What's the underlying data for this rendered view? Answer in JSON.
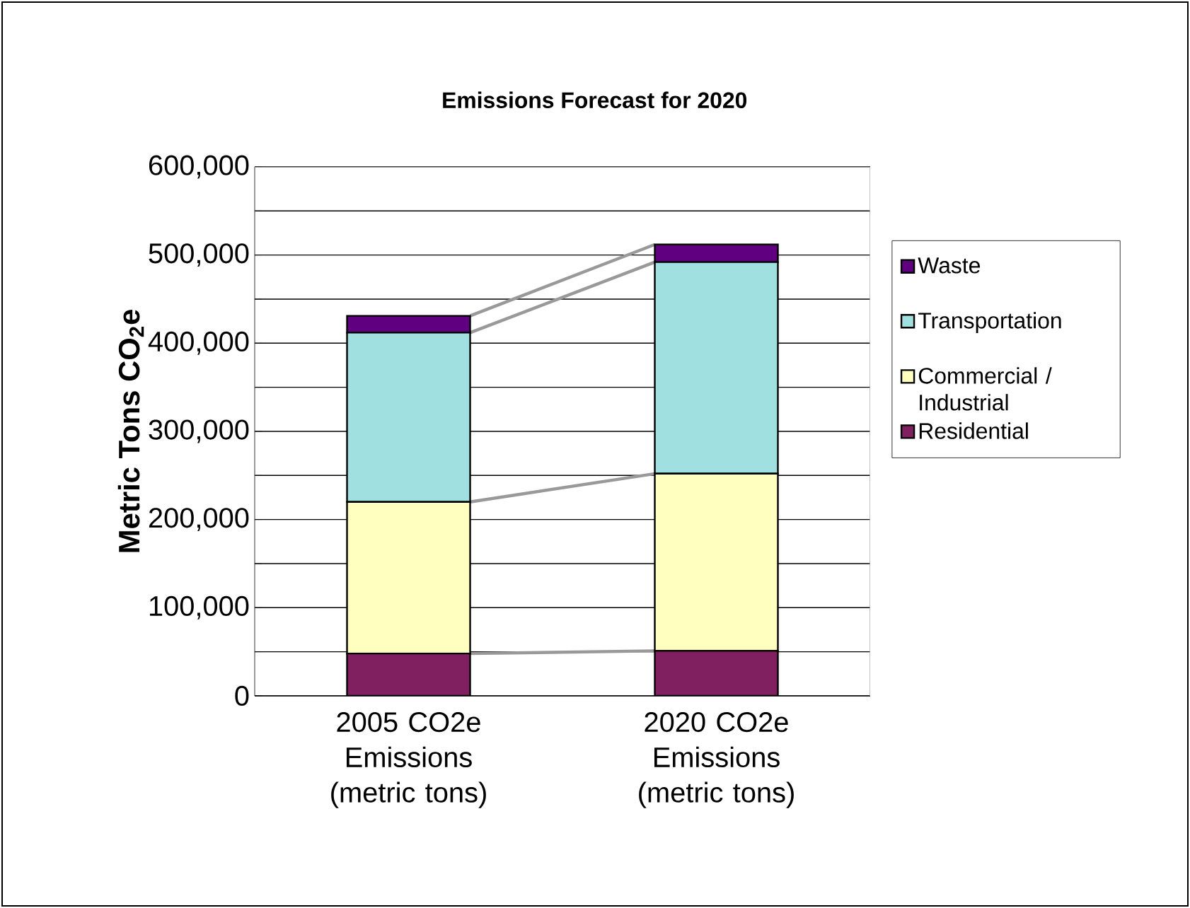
{
  "chart_data": {
    "type": "bar",
    "stacked": true,
    "title": "Emissions Forecast for 2020",
    "ylabel": "Metric Tons CO$_{2}$e",
    "categories": [
      "2005 CO2e Emissions (metric tons)",
      "2020 CO2e Emissions (metric tons)"
    ],
    "series": [
      {
        "name": "Residential",
        "color": "#802060",
        "values": [
          48000,
          51000
        ]
      },
      {
        "name": "Commercial / Industrial",
        "color": "#ffffc0",
        "values": [
          172000,
          201000
        ]
      },
      {
        "name": "Transportation",
        "color": "#a0e0e0",
        "values": [
          192000,
          240000
        ]
      },
      {
        "name": "Waste",
        "color": "#600080",
        "values": [
          19000,
          20000
        ]
      }
    ],
    "ylim": [
      0,
      600000
    ],
    "yticks": [
      {
        "value": 0,
        "label": "0"
      },
      {
        "value": 50000,
        "label": null
      },
      {
        "value": 100000,
        "label": "100,000"
      },
      {
        "value": 150000,
        "label": null
      },
      {
        "value": 200000,
        "label": "200,000"
      },
      {
        "value": 250000,
        "label": null
      },
      {
        "value": 300000,
        "label": "300,000"
      },
      {
        "value": 350000,
        "label": null
      },
      {
        "value": 400000,
        "label": "400,000"
      },
      {
        "value": 450000,
        "label": null
      },
      {
        "value": 500000,
        "label": "500,000"
      },
      {
        "value": 550000,
        "label": null
      },
      {
        "value": 600000,
        "label": "600,000"
      }
    ],
    "grid": "y",
    "legend": "right"
  }
}
